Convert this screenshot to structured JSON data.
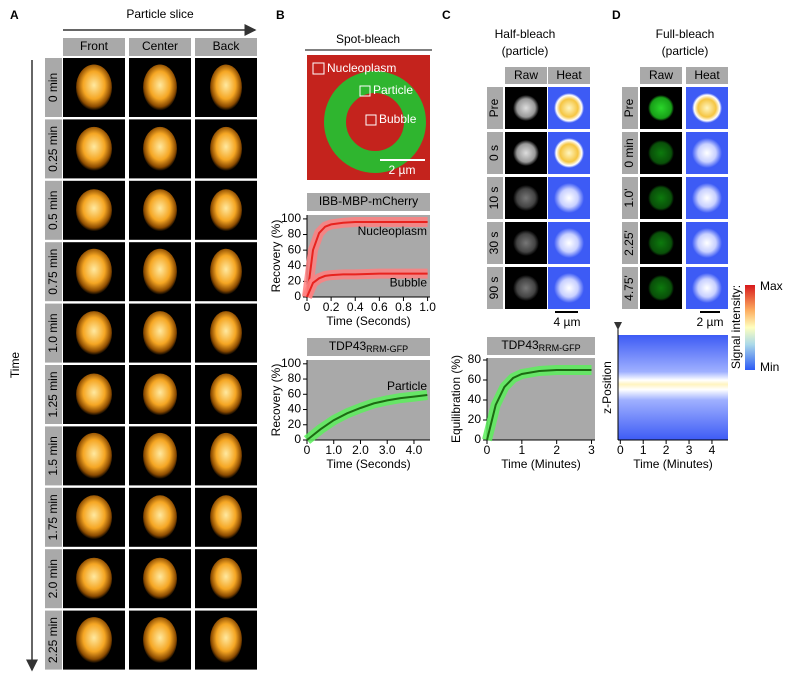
{
  "panel_a": {
    "label": "A",
    "title": "Particle slice",
    "axis_label": "Time",
    "columns": [
      "Front",
      "Center",
      "Back"
    ],
    "rows": [
      "0 min",
      "0.25 min",
      "0.5 min",
      "0.75 min",
      "1.0 min",
      "1.25 min",
      "1.5 min",
      "1.75 min",
      "2.0 min",
      "2.25 min"
    ]
  },
  "panel_b": {
    "label": "B",
    "title": "Spot-bleach",
    "regions": [
      "Nucleoplasm",
      "Particle",
      "Bubble"
    ],
    "scale_bar": "2 µm"
  },
  "panel_c": {
    "label": "C",
    "title": [
      "Half-bleach",
      "(particle)"
    ],
    "columns": [
      "Raw",
      "Heat"
    ],
    "rows": [
      "Pre",
      "0 s",
      "10 s",
      "30 s",
      "90 s"
    ],
    "scale_bar": "4 µm"
  },
  "panel_d": {
    "label": "D",
    "title": [
      "Full-bleach",
      "(particle)"
    ],
    "columns": [
      "Raw",
      "Heat"
    ],
    "rows": [
      "Pre",
      "0 min",
      "1.0'",
      "2.25'",
      "4.75'"
    ],
    "scale_bar": "2 µm",
    "colorbar": {
      "label": "Signal intensity:",
      "max": "Max",
      "min": "Min"
    }
  },
  "chart_data": [
    {
      "type": "line",
      "title": "IBB-MBP-mCherry",
      "xlabel": "Time (Seconds)",
      "ylabel": "Recovery (%)",
      "x": [
        0,
        0.05,
        0.1,
        0.15,
        0.2,
        0.3,
        0.4,
        0.6,
        0.8,
        1.0
      ],
      "series": [
        {
          "name": "Nucleoplasm",
          "color": "#e8231e",
          "band_color": "#ff8080",
          "values": [
            0,
            60,
            82,
            90,
            93,
            95,
            96,
            96,
            96,
            96
          ]
        },
        {
          "name": "Bubble",
          "color": "#e8231e",
          "band_color": "#ff8080",
          "values": [
            0,
            18,
            24,
            27,
            28,
            29,
            29,
            30,
            30,
            30
          ]
        }
      ],
      "xlim": [
        0,
        1.02
      ],
      "ylim": [
        0,
        105
      ],
      "xticks": [
        0,
        0.2,
        0.4,
        0.6,
        0.8,
        {
          "value": 1,
          "label": "1.0"
        }
      ],
      "yticks": [
        0,
        20,
        40,
        60,
        80,
        100
      ]
    },
    {
      "type": "line",
      "title": "TDP43",
      "title_subscript": "RRM-GFP",
      "xlabel": "Time (Seconds)",
      "ylabel": "Recovery (%)",
      "x": [
        0,
        0.5,
        1,
        1.5,
        2,
        2.5,
        3,
        3.5,
        4,
        4.5
      ],
      "series": [
        {
          "name": "Particle",
          "color": "#1c6b12",
          "band_color": "#5cf05c",
          "values": [
            0,
            14,
            26,
            35,
            42,
            48,
            52,
            55,
            57,
            59
          ]
        }
      ],
      "xlim": [
        0,
        4.6
      ],
      "ylim": [
        0,
        105
      ],
      "xticks": [
        0,
        {
          "value": 1,
          "label": "1.0"
        },
        {
          "value": 2,
          "label": "2.0"
        },
        {
          "value": 3,
          "label": "3.0"
        },
        {
          "value": 4,
          "label": "4.0"
        }
      ],
      "yticks": [
        0,
        20,
        40,
        60,
        80,
        100
      ]
    },
    {
      "type": "line",
      "title": "TDP43",
      "title_subscript": "RRM-GFP",
      "xlabel": "Time (Minutes)",
      "ylabel": "Equilibration (%)",
      "x": [
        0,
        0.25,
        0.5,
        0.75,
        1,
        1.5,
        2,
        2.5,
        3
      ],
      "series": [
        {
          "name": "Particle",
          "color": "#1c6b12",
          "band_color": "#5cf05c",
          "values": [
            0,
            35,
            53,
            62,
            66,
            69,
            70,
            70,
            70
          ]
        }
      ],
      "xlim": [
        0,
        3.1
      ],
      "ylim": [
        0,
        82
      ],
      "xticks": [
        0,
        1,
        2,
        3
      ],
      "yticks": [
        0,
        20,
        40,
        60,
        80
      ]
    },
    {
      "type": "heatmap",
      "xlabel": "Time (Minutes)",
      "ylabel": "z-Position",
      "xlim": [
        -0.1,
        4.7
      ],
      "xticks": [
        0,
        1,
        2,
        3,
        4
      ]
    }
  ]
}
